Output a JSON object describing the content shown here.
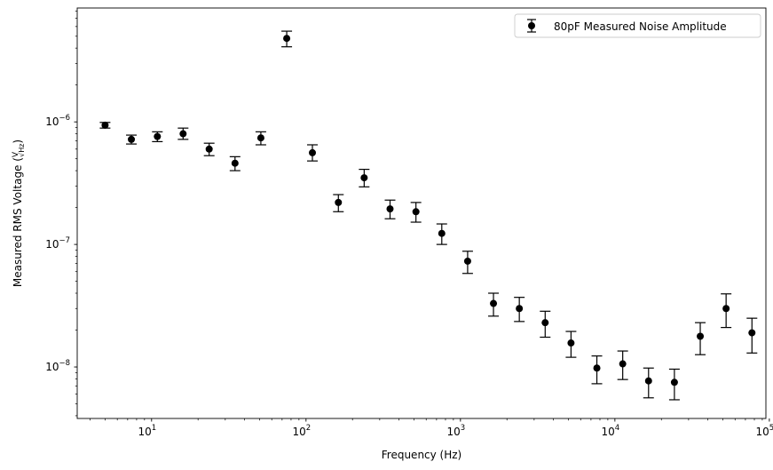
{
  "chart_data": {
    "type": "scatter",
    "title": "",
    "xlabel": "Frequency (Hz)",
    "ylabel": "Measured RMS Voltage (",
    "ylabel_unit_num": "V",
    "ylabel_unit_den": "Hz",
    "ylabel_close": ")",
    "xscale": "log",
    "yscale": "log",
    "xlim": [
      3.3,
      95000
    ],
    "ylim": [
      3.8e-09,
      8.5e-06
    ],
    "grid": false,
    "legend_position": "top-right",
    "x_ticks": [
      {
        "base": "10",
        "exp": "1",
        "value": 10
      },
      {
        "base": "10",
        "exp": "2",
        "value": 100
      },
      {
        "base": "10",
        "exp": "3",
        "value": 1000
      },
      {
        "base": "10",
        "exp": "4",
        "value": 10000
      },
      {
        "base": "10",
        "exp": "5",
        "value": 100000
      }
    ],
    "y_ticks": [
      {
        "base": "10",
        "exp": "−8",
        "value": 1e-08
      },
      {
        "base": "10",
        "exp": "−7",
        "value": 1e-07
      },
      {
        "base": "10",
        "exp": "−6",
        "value": 1e-06
      }
    ],
    "series": [
      {
        "name": "80pF Measured Noise Amplitude",
        "color": "#000000",
        "points": [
          {
            "x": 5.0,
            "y": 9.4e-07,
            "lo": 8.9e-07,
            "hi": 9.9e-07
          },
          {
            "x": 7.4,
            "y": 7.2e-07,
            "lo": 6.6e-07,
            "hi": 7.8e-07
          },
          {
            "x": 10.9,
            "y": 7.6e-07,
            "lo": 6.9e-07,
            "hi": 8.3e-07
          },
          {
            "x": 16.0,
            "y": 8e-07,
            "lo": 7.2e-07,
            "hi": 8.9e-07
          },
          {
            "x": 23.6,
            "y": 6e-07,
            "lo": 5.3e-07,
            "hi": 6.7e-07
          },
          {
            "x": 34.7,
            "y": 4.6e-07,
            "lo": 4e-07,
            "hi": 5.2e-07
          },
          {
            "x": 51.0,
            "y": 7.4e-07,
            "lo": 6.5e-07,
            "hi": 8.3e-07
          },
          {
            "x": 75.0,
            "y": 4.8e-06,
            "lo": 4.1e-06,
            "hi": 5.5e-06
          },
          {
            "x": 110,
            "y": 5.6e-07,
            "lo": 4.8e-07,
            "hi": 6.5e-07
          },
          {
            "x": 162,
            "y": 2.2e-07,
            "lo": 1.85e-07,
            "hi": 2.55e-07
          },
          {
            "x": 238,
            "y": 3.5e-07,
            "lo": 2.95e-07,
            "hi": 4.1e-07
          },
          {
            "x": 350,
            "y": 1.95e-07,
            "lo": 1.62e-07,
            "hi": 2.3e-07
          },
          {
            "x": 515,
            "y": 1.85e-07,
            "lo": 1.52e-07,
            "hi": 2.2e-07
          },
          {
            "x": 757,
            "y": 1.23e-07,
            "lo": 1e-07,
            "hi": 1.47e-07
          },
          {
            "x": 1113,
            "y": 7.3e-08,
            "lo": 5.8e-08,
            "hi": 8.8e-08
          },
          {
            "x": 1636,
            "y": 3.3e-08,
            "lo": 2.6e-08,
            "hi": 4e-08
          },
          {
            "x": 2405,
            "y": 3e-08,
            "lo": 2.35e-08,
            "hi": 3.7e-08
          },
          {
            "x": 3536,
            "y": 2.3e-08,
            "lo": 1.75e-08,
            "hi": 2.85e-08
          },
          {
            "x": 5198,
            "y": 1.57e-08,
            "lo": 1.2e-08,
            "hi": 1.95e-08
          },
          {
            "x": 7643,
            "y": 9.8e-09,
            "lo": 7.3e-09,
            "hi": 1.23e-08
          },
          {
            "x": 11236,
            "y": 1.06e-08,
            "lo": 7.9e-09,
            "hi": 1.35e-08
          },
          {
            "x": 16518,
            "y": 7.7e-09,
            "lo": 5.6e-09,
            "hi": 9.8e-09
          },
          {
            "x": 24284,
            "y": 7.5e-09,
            "lo": 5.4e-09,
            "hi": 9.6e-09
          },
          {
            "x": 35700,
            "y": 1.78e-08,
            "lo": 1.26e-08,
            "hi": 2.3e-08
          },
          {
            "x": 52485,
            "y": 3e-08,
            "lo": 2.1e-08,
            "hi": 3.95e-08
          },
          {
            "x": 77160,
            "y": 1.9e-08,
            "lo": 1.3e-08,
            "hi": 2.5e-08
          }
        ]
      }
    ]
  }
}
